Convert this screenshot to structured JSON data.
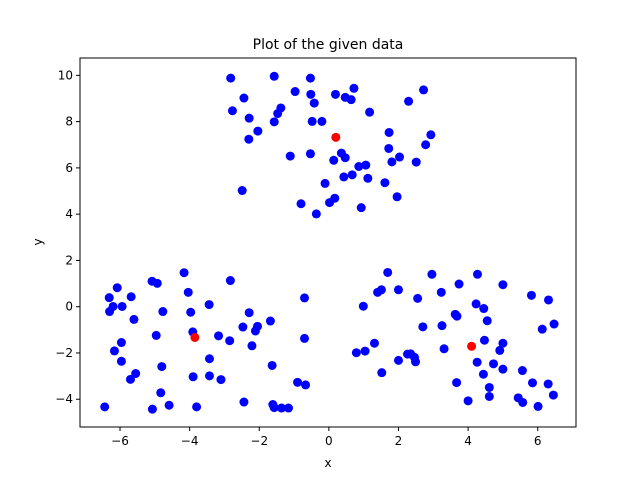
{
  "chart_data": {
    "type": "scatter",
    "title": "Plot of the given data",
    "xlabel": "x",
    "ylabel": "y",
    "xlim": [
      -7.15,
      7.1
    ],
    "ylim": [
      -5.2,
      10.75
    ],
    "xticks": [
      -6,
      -4,
      -2,
      0,
      2,
      4,
      6
    ],
    "yticks": [
      -4,
      -2,
      0,
      2,
      4,
      6,
      8,
      10
    ],
    "xtick_labels": [
      "−6",
      "−4",
      "−2",
      "0",
      "2",
      "4",
      "6"
    ],
    "ytick_labels": [
      "−4",
      "−2",
      "0",
      "2",
      "4",
      "6",
      "8",
      "10"
    ],
    "grid": false,
    "series": [
      {
        "color": "#0000ff",
        "points": [
          [
            -2.82,
            9.88
          ],
          [
            -1.57,
            9.96
          ],
          [
            -0.53,
            9.88
          ],
          [
            -0.97,
            9.3
          ],
          [
            -2.44,
            9.02
          ],
          [
            -0.52,
            9.18
          ],
          [
            0.19,
            9.18
          ],
          [
            0.47,
            9.05
          ],
          [
            0.64,
            8.95
          ],
          [
            0.72,
            9.44
          ],
          [
            2.72,
            9.37
          ],
          [
            2.29,
            8.88
          ],
          [
            -0.42,
            8.8
          ],
          [
            -2.77,
            8.47
          ],
          [
            -1.38,
            8.59
          ],
          [
            -1.47,
            8.35
          ],
          [
            1.17,
            8.41
          ],
          [
            -2.29,
            8.15
          ],
          [
            -1.57,
            7.99
          ],
          [
            -0.48,
            8.01
          ],
          [
            -0.2,
            8.01
          ],
          [
            -2.04,
            7.59
          ],
          [
            -2.3,
            7.24
          ],
          [
            1.73,
            7.53
          ],
          [
            2.93,
            7.43
          ],
          [
            2.78,
            7.0
          ],
          [
            1.72,
            6.84
          ],
          [
            -0.53,
            6.61
          ],
          [
            0.36,
            6.64
          ],
          [
            0.47,
            6.44
          ],
          [
            0.14,
            6.33
          ],
          [
            -1.11,
            6.51
          ],
          [
            1.81,
            6.26
          ],
          [
            2.03,
            6.47
          ],
          [
            2.51,
            6.25
          ],
          [
            0.86,
            6.06
          ],
          [
            1.06,
            6.12
          ],
          [
            0.67,
            5.7
          ],
          [
            0.43,
            5.61
          ],
          [
            1.12,
            5.55
          ],
          [
            1.61,
            5.36
          ],
          [
            -2.49,
            5.02
          ],
          [
            -0.11,
            5.33
          ],
          [
            1.96,
            4.75
          ],
          [
            0.17,
            4.69
          ],
          [
            -0.8,
            4.45
          ],
          [
            0.02,
            4.5
          ],
          [
            -0.36,
            4.01
          ],
          [
            0.93,
            4.28
          ],
          [
            -6.08,
            0.82
          ],
          [
            -5.08,
            1.1
          ],
          [
            -4.93,
            1.01
          ],
          [
            -4.16,
            1.47
          ],
          [
            -2.83,
            1.13
          ],
          [
            -6.31,
            0.39
          ],
          [
            -5.68,
            0.43
          ],
          [
            -6.2,
            0.01
          ],
          [
            -5.94,
            0.01
          ],
          [
            -4.04,
            0.62
          ],
          [
            -3.44,
            0.09
          ],
          [
            -0.7,
            0.38
          ],
          [
            -6.3,
            -0.21
          ],
          [
            -4.77,
            -0.21
          ],
          [
            -3.97,
            -0.24
          ],
          [
            -2.29,
            -0.26
          ],
          [
            -5.6,
            -0.55
          ],
          [
            -1.68,
            -0.62
          ],
          [
            -2.47,
            -0.88
          ],
          [
            -2.05,
            -0.85
          ],
          [
            -3.91,
            -1.09
          ],
          [
            -2.11,
            -1.05
          ],
          [
            -4.96,
            -1.24
          ],
          [
            -3.17,
            -1.26
          ],
          [
            -2.85,
            -1.47
          ],
          [
            -5.96,
            -1.55
          ],
          [
            -0.7,
            -1.37
          ],
          [
            -2.21,
            -1.69
          ],
          [
            -6.16,
            -1.91
          ],
          [
            -3.43,
            -2.25
          ],
          [
            -5.96,
            -2.36
          ],
          [
            -1.63,
            -2.54
          ],
          [
            -4.8,
            -2.59
          ],
          [
            -5.55,
            -2.89
          ],
          [
            -3.9,
            -3.03
          ],
          [
            -3.43,
            -2.99
          ],
          [
            -3.1,
            -3.15
          ],
          [
            -5.7,
            -3.14
          ],
          [
            -0.9,
            -3.27
          ],
          [
            -0.67,
            -3.38
          ],
          [
            -4.83,
            -3.72
          ],
          [
            -2.44,
            -4.12
          ],
          [
            -1.61,
            -4.23
          ],
          [
            -4.59,
            -4.26
          ],
          [
            -3.8,
            -4.33
          ],
          [
            -1.57,
            -4.36
          ],
          [
            -1.36,
            -4.38
          ],
          [
            -1.16,
            -4.38
          ],
          [
            -6.44,
            -4.33
          ],
          [
            -5.07,
            -4.43
          ],
          [
            1.69,
            1.48
          ],
          [
            2.96,
            1.4
          ],
          [
            4.27,
            1.4
          ],
          [
            3.74,
            0.98
          ],
          [
            5.0,
            0.95
          ],
          [
            3.23,
            0.62
          ],
          [
            2.0,
            0.73
          ],
          [
            1.4,
            0.62
          ],
          [
            1.51,
            0.73
          ],
          [
            2.55,
            0.36
          ],
          [
            5.82,
            0.49
          ],
          [
            6.31,
            0.29
          ],
          [
            0.99,
            0.02
          ],
          [
            4.23,
            0.12
          ],
          [
            4.45,
            -0.08
          ],
          [
            3.68,
            -0.41
          ],
          [
            3.63,
            -0.33
          ],
          [
            4.55,
            -0.61
          ],
          [
            6.47,
            -0.75
          ],
          [
            6.13,
            -0.97
          ],
          [
            3.25,
            -0.82
          ],
          [
            2.7,
            -0.87
          ],
          [
            4.47,
            -1.45
          ],
          [
            5.0,
            -1.58
          ],
          [
            1.31,
            -1.58
          ],
          [
            3.31,
            -1.82
          ],
          [
            1.04,
            -1.92
          ],
          [
            0.79,
            -1.99
          ],
          [
            4.91,
            -1.89
          ],
          [
            2.35,
            -2.04
          ],
          [
            2.26,
            -2.05
          ],
          [
            2.46,
            -2.19
          ],
          [
            2.0,
            -2.32
          ],
          [
            2.49,
            -2.38
          ],
          [
            4.26,
            -2.4
          ],
          [
            4.73,
            -2.47
          ],
          [
            5.0,
            -2.7
          ],
          [
            5.56,
            -2.76
          ],
          [
            4.44,
            -2.92
          ],
          [
            1.52,
            -2.85
          ],
          [
            6.3,
            -3.34
          ],
          [
            3.67,
            -3.28
          ],
          [
            4.61,
            -3.49
          ],
          [
            5.85,
            -3.29
          ],
          [
            6.45,
            -3.82
          ],
          [
            5.44,
            -3.94
          ],
          [
            4.61,
            -3.88
          ],
          [
            5.57,
            -4.14
          ],
          [
            4.0,
            -4.07
          ],
          [
            6.01,
            -4.31
          ]
        ]
      },
      {
        "color": "#ff0000",
        "points": [
          [
            0.2,
            7.32
          ],
          [
            -3.85,
            -1.33
          ],
          [
            4.1,
            -1.71
          ]
        ]
      }
    ]
  }
}
